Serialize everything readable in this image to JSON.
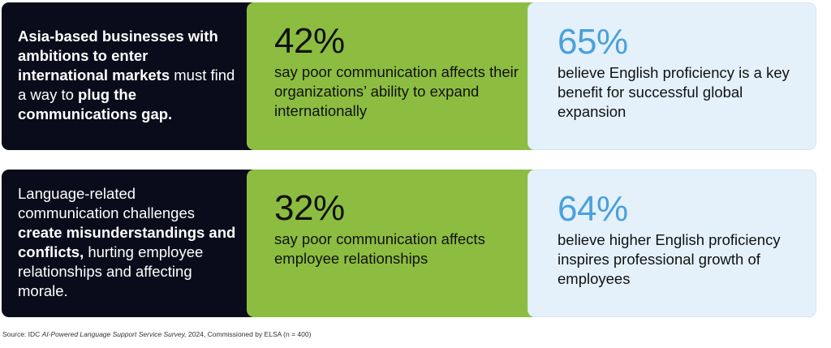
{
  "rows": [
    {
      "intro": [
        {
          "text": "Asia-based businesses with ambitions to enter international markets",
          "bold": true
        },
        {
          "text": " must find a way to ",
          "bold": false
        },
        {
          "text": "plug the communications gap.",
          "bold": true
        }
      ],
      "stats": [
        {
          "value": "42%",
          "description": "say poor communication affects their organizations’ ability to expand internationally"
        },
        {
          "value": "65%",
          "description": "believe English proficiency is a key benefit for successful global expansion"
        }
      ]
    },
    {
      "intro": [
        {
          "text": "Language-related communication challenges ",
          "bold": false
        },
        {
          "text": "create misunderstandings and conflicts,",
          "bold": true
        },
        {
          "text": " hurting employee relationships and affecting morale.",
          "bold": false
        }
      ],
      "stats": [
        {
          "value": "32%",
          "description": "say poor communication affects employee relationships"
        },
        {
          "value": "64%",
          "description": "believe higher English proficiency inspires professional growth of employees"
        }
      ]
    }
  ],
  "source": {
    "prefix": "Source: IDC ",
    "title": "AI-Powered Language Support Service Survey,",
    "suffix": " 2024, Commissioned by ELSA (n = 400)"
  },
  "colors": {
    "dark_panel": "#0b0c1b",
    "green_panel": "#8cbd40",
    "blue_panel": "#e4f1fb",
    "blue_stat": "#4ba0dc"
  }
}
